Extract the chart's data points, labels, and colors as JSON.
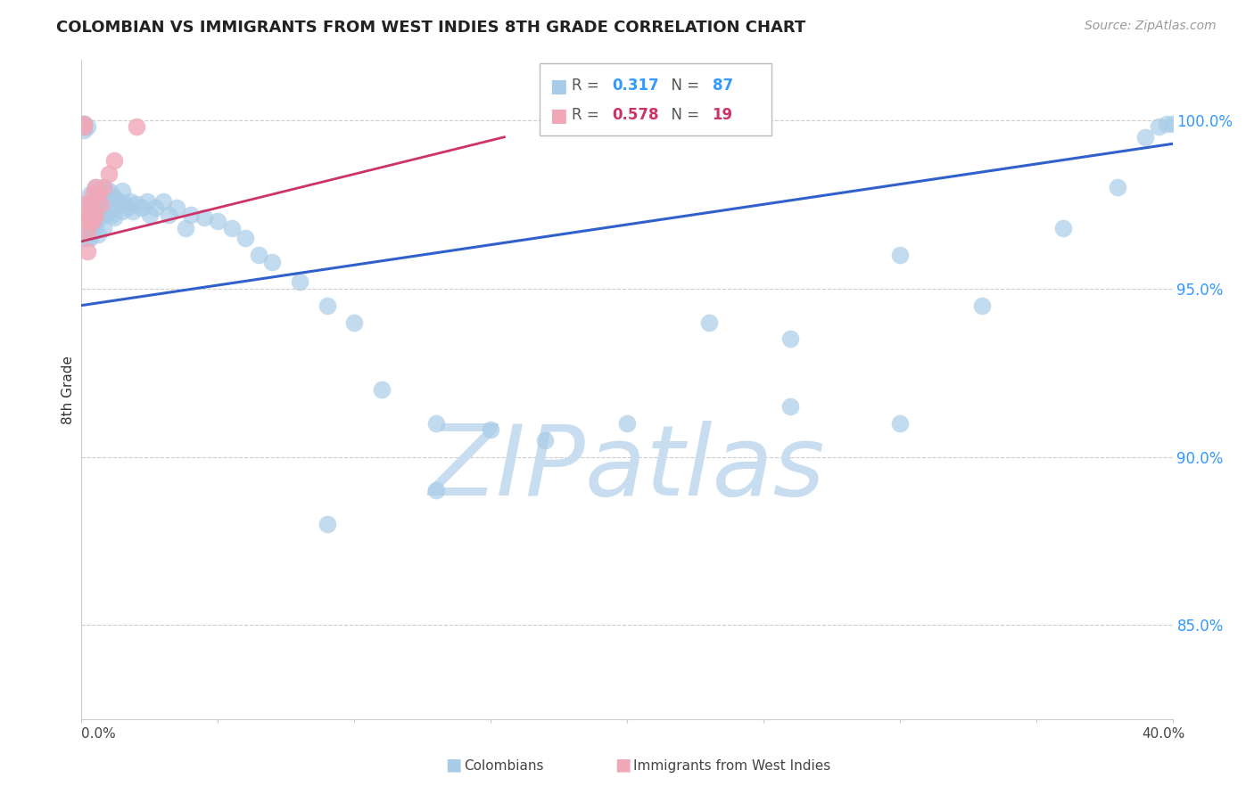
{
  "title": "COLOMBIAN VS IMMIGRANTS FROM WEST INDIES 8TH GRADE CORRELATION CHART",
  "source": "Source: ZipAtlas.com",
  "ylabel": "8th Grade",
  "ytick_values": [
    0.85,
    0.9,
    0.95,
    1.0
  ],
  "xlim": [
    0.0,
    0.4
  ],
  "ylim": [
    0.822,
    1.018
  ],
  "blue_R": 0.317,
  "blue_N": 87,
  "pink_R": 0.578,
  "pink_N": 19,
  "blue_line_x0": 0.0,
  "blue_line_x1": 0.4,
  "blue_line_y0": 0.945,
  "blue_line_y1": 0.993,
  "pink_line_x0": 0.0,
  "pink_line_x1": 0.155,
  "pink_line_y0": 0.964,
  "pink_line_y1": 0.995,
  "blue_scatter_x": [
    0.001,
    0.001,
    0.001,
    0.001,
    0.001,
    0.001,
    0.001,
    0.001,
    0.001,
    0.001,
    0.002,
    0.002,
    0.002,
    0.002,
    0.002,
    0.003,
    0.003,
    0.003,
    0.003,
    0.004,
    0.004,
    0.004,
    0.005,
    0.005,
    0.005,
    0.006,
    0.006,
    0.006,
    0.007,
    0.007,
    0.008,
    0.008,
    0.008,
    0.009,
    0.009,
    0.01,
    0.01,
    0.011,
    0.011,
    0.012,
    0.012,
    0.013,
    0.014,
    0.015,
    0.015,
    0.016,
    0.017,
    0.018,
    0.019,
    0.02,
    0.022,
    0.024,
    0.025,
    0.027,
    0.03,
    0.032,
    0.035,
    0.038,
    0.04,
    0.045,
    0.05,
    0.055,
    0.06,
    0.065,
    0.07,
    0.08,
    0.09,
    0.1,
    0.11,
    0.13,
    0.15,
    0.17,
    0.2,
    0.23,
    0.26,
    0.3,
    0.33,
    0.36,
    0.38,
    0.39,
    0.395,
    0.398,
    0.4,
    0.3,
    0.26,
    0.13,
    0.09
  ],
  "blue_scatter_y": [
    0.999,
    0.999,
    0.998,
    0.998,
    0.997,
    0.975,
    0.972,
    0.97,
    0.968,
    0.965,
    0.998,
    0.975,
    0.972,
    0.969,
    0.965,
    0.978,
    0.973,
    0.969,
    0.965,
    0.976,
    0.972,
    0.967,
    0.98,
    0.974,
    0.969,
    0.976,
    0.971,
    0.966,
    0.978,
    0.973,
    0.98,
    0.974,
    0.968,
    0.977,
    0.972,
    0.979,
    0.973,
    0.978,
    0.972,
    0.977,
    0.971,
    0.975,
    0.976,
    0.979,
    0.973,
    0.975,
    0.974,
    0.976,
    0.973,
    0.975,
    0.974,
    0.976,
    0.972,
    0.974,
    0.976,
    0.972,
    0.974,
    0.968,
    0.972,
    0.971,
    0.97,
    0.968,
    0.965,
    0.96,
    0.958,
    0.952,
    0.945,
    0.94,
    0.92,
    0.91,
    0.908,
    0.905,
    0.91,
    0.94,
    0.915,
    0.91,
    0.945,
    0.968,
    0.98,
    0.995,
    0.998,
    0.999,
    0.999,
    0.96,
    0.935,
    0.89,
    0.88
  ],
  "pink_scatter_x": [
    0.001,
    0.001,
    0.001,
    0.001,
    0.002,
    0.002,
    0.002,
    0.003,
    0.003,
    0.004,
    0.004,
    0.005,
    0.005,
    0.006,
    0.007,
    0.008,
    0.01,
    0.012,
    0.02
  ],
  "pink_scatter_y": [
    0.999,
    0.998,
    0.975,
    0.97,
    0.972,
    0.967,
    0.961,
    0.975,
    0.97,
    0.978,
    0.97,
    0.98,
    0.972,
    0.978,
    0.975,
    0.98,
    0.984,
    0.988,
    0.998
  ],
  "blue_color": "#A8CCE8",
  "blue_line_color": "#3060CC",
  "pink_color": "#F0A8B8",
  "pink_line_color": "#CC3366",
  "watermark_text": "ZIPatlas",
  "watermark_color": "#C8DDEF",
  "background_color": "#FFFFFF",
  "grid_color": "#CCCCCC"
}
